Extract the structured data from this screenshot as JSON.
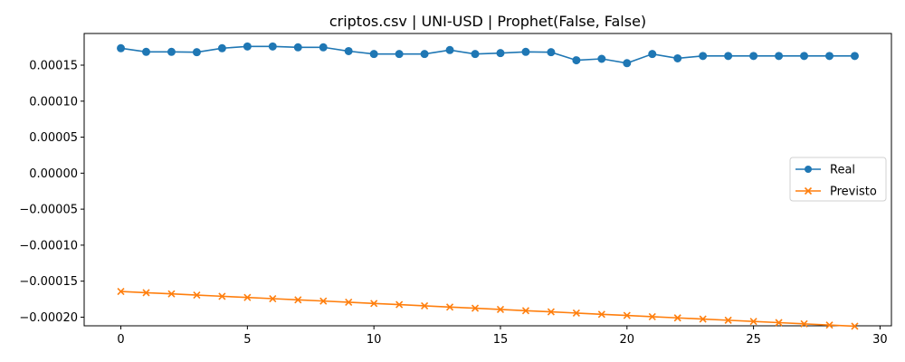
{
  "chart_data": {
    "type": "line",
    "title": "criptos.csv | UNI-USD | Prophet(False, False)",
    "xlabel": "",
    "ylabel": "",
    "xlim": [
      -1.45,
      30.45
    ],
    "ylim": [
      -0.000212,
      0.000194
    ],
    "xticks": [
      0,
      5,
      10,
      15,
      20,
      25,
      30
    ],
    "xtick_labels": [
      "0",
      "5",
      "10",
      "15",
      "20",
      "25",
      "30"
    ],
    "yticks": [
      -0.0002,
      -0.00015,
      -0.0001,
      -5e-05,
      0,
      5e-05,
      0.0001,
      0.00015
    ],
    "ytick_labels": [
      "−0.00020",
      "−0.00015",
      "−0.00010",
      "−0.00005",
      "0.00000",
      "0.00005",
      "0.00010",
      "0.00015"
    ],
    "grid": false,
    "legend_position": "center-right",
    "x": [
      0,
      1,
      2,
      3,
      4,
      5,
      6,
      7,
      8,
      9,
      10,
      11,
      12,
      13,
      14,
      15,
      16,
      17,
      18,
      19,
      20,
      21,
      22,
      23,
      24,
      25,
      26,
      27,
      28,
      29
    ],
    "series": [
      {
        "name": "Real",
        "color": "#1f77b4",
        "marker": "circle",
        "values": [
          0.0001735,
          0.0001685,
          0.0001685,
          0.000168,
          0.0001735,
          0.000176,
          0.000176,
          0.0001748,
          0.0001748,
          0.0001695,
          0.0001655,
          0.0001655,
          0.0001655,
          0.000171,
          0.0001655,
          0.0001668,
          0.0001685,
          0.000168,
          0.0001568,
          0.0001588,
          0.0001528,
          0.0001655,
          0.0001595,
          0.0001628,
          0.0001628,
          0.0001628,
          0.0001628,
          0.0001628,
          0.0001628,
          0.0001628
        ]
      },
      {
        "name": "Previsto",
        "color": "#ff7f0e",
        "marker": "x",
        "values": [
          -0.0001643,
          -0.000166,
          -0.0001676,
          -0.0001693,
          -0.000171,
          -0.0001726,
          -0.0001743,
          -0.000176,
          -0.0001776,
          -0.0001793,
          -0.000181,
          -0.0001826,
          -0.0001843,
          -0.000186,
          -0.0001876,
          -0.0001893,
          -0.000191,
          -0.0001926,
          -0.0001943,
          -0.000196,
          -0.0001976,
          -0.0001993,
          -0.000201,
          -0.0002026,
          -0.0002043,
          -0.000206,
          -0.0002076,
          -0.0002093,
          -0.000211,
          -0.0002126
        ]
      }
    ]
  }
}
